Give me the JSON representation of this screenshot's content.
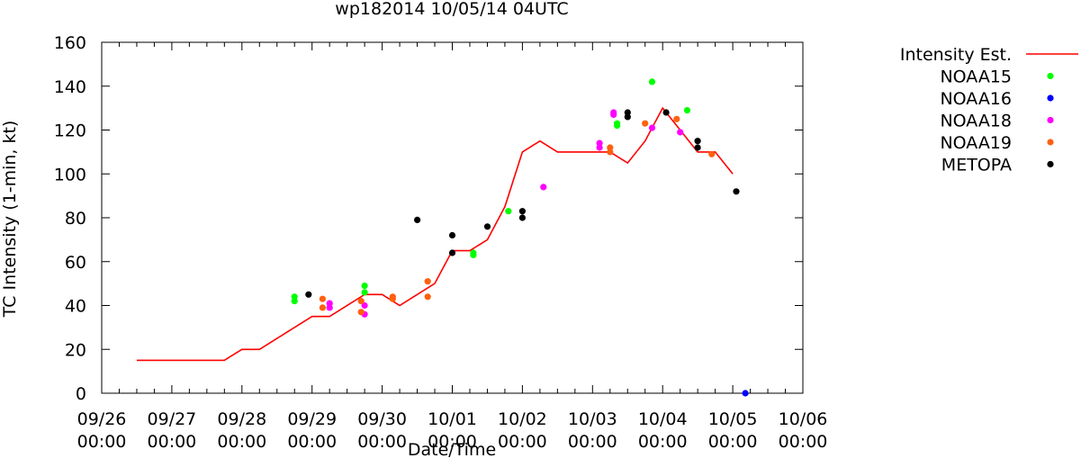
{
  "chart_data": {
    "type": "scatter",
    "title": "wp182014 10/05/14 04UTC",
    "xlabel": "Date/Time",
    "ylabel": "TC Intensity (1-min, kt)",
    "xlim": [
      0,
      10
    ],
    "ylim": [
      0,
      160
    ],
    "x_unit": "days since 09/26 00:00",
    "y_ticks": [
      0,
      20,
      40,
      60,
      80,
      100,
      120,
      140,
      160
    ],
    "x_ticks": [
      {
        "x": 0,
        "date": "09/26",
        "time": "00:00"
      },
      {
        "x": 1,
        "date": "09/27",
        "time": "00:00"
      },
      {
        "x": 2,
        "date": "09/28",
        "time": "00:00"
      },
      {
        "x": 3,
        "date": "09/29",
        "time": "00:00"
      },
      {
        "x": 4,
        "date": "09/30",
        "time": "00:00"
      },
      {
        "x": 5,
        "date": "10/01",
        "time": "00:00"
      },
      {
        "x": 6,
        "date": "10/02",
        "time": "00:00"
      },
      {
        "x": 7,
        "date": "10/03",
        "time": "00:00"
      },
      {
        "x": 8,
        "date": "10/04",
        "time": "00:00"
      },
      {
        "x": 9,
        "date": "10/05",
        "time": "00:00"
      },
      {
        "x": 10,
        "date": "10/06",
        "time": "00:00"
      }
    ],
    "line_series": {
      "name": "Intensity Est.",
      "color": "#ff0000",
      "points": [
        [
          0.5,
          15
        ],
        [
          1.75,
          15
        ],
        [
          2.0,
          20
        ],
        [
          2.25,
          20
        ],
        [
          3.0,
          35
        ],
        [
          3.25,
          35
        ],
        [
          3.75,
          45
        ],
        [
          4.0,
          45
        ],
        [
          4.25,
          40
        ],
        [
          4.75,
          50
        ],
        [
          5.0,
          65
        ],
        [
          5.25,
          65
        ],
        [
          5.5,
          70
        ],
        [
          5.75,
          85
        ],
        [
          6.0,
          110
        ],
        [
          6.25,
          115
        ],
        [
          6.5,
          110
        ],
        [
          7.0,
          110
        ],
        [
          7.25,
          110
        ],
        [
          7.5,
          105
        ],
        [
          7.75,
          115
        ],
        [
          8.0,
          130
        ],
        [
          8.25,
          120
        ],
        [
          8.5,
          110
        ],
        [
          8.75,
          110
        ],
        [
          9.0,
          100
        ]
      ]
    },
    "series": [
      {
        "name": "NOAA15",
        "color": "#00ff00",
        "points": [
          [
            2.75,
            44
          ],
          [
            2.75,
            42
          ],
          [
            3.75,
            49
          ],
          [
            3.75,
            46
          ],
          [
            5.3,
            64
          ],
          [
            5.3,
            63
          ],
          [
            5.8,
            83
          ],
          [
            7.35,
            123
          ],
          [
            7.35,
            122
          ],
          [
            7.85,
            142
          ],
          [
            8.35,
            129
          ]
        ]
      },
      {
        "name": "NOAA16",
        "color": "#0000ff",
        "points": [
          [
            9.18,
            0
          ]
        ]
      },
      {
        "name": "NOAA18",
        "color": "#ff00ff",
        "points": [
          [
            3.25,
            41
          ],
          [
            3.25,
            39
          ],
          [
            3.75,
            40
          ],
          [
            3.75,
            36
          ],
          [
            6.3,
            94
          ],
          [
            7.1,
            114
          ],
          [
            7.1,
            112
          ],
          [
            7.3,
            128
          ],
          [
            7.3,
            127
          ],
          [
            7.85,
            121
          ],
          [
            8.25,
            119
          ]
        ]
      },
      {
        "name": "NOAA19",
        "color": "#ff6010",
        "points": [
          [
            3.15,
            43
          ],
          [
            3.15,
            39
          ],
          [
            3.7,
            42
          ],
          [
            3.7,
            37
          ],
          [
            4.15,
            44
          ],
          [
            4.15,
            43
          ],
          [
            4.65,
            51
          ],
          [
            4.65,
            44
          ],
          [
            7.25,
            112
          ],
          [
            7.25,
            110
          ],
          [
            7.75,
            123
          ],
          [
            8.2,
            125
          ],
          [
            8.7,
            109
          ]
        ]
      },
      {
        "name": "METOPA",
        "color": "#000000",
        "points": [
          [
            2.95,
            45
          ],
          [
            4.5,
            79
          ],
          [
            5.0,
            72
          ],
          [
            5.0,
            64
          ],
          [
            5.5,
            76
          ],
          [
            6.0,
            83
          ],
          [
            6.0,
            80
          ],
          [
            7.5,
            128
          ],
          [
            7.5,
            126
          ],
          [
            8.05,
            128
          ],
          [
            8.5,
            115
          ],
          [
            8.5,
            112
          ],
          [
            9.05,
            92
          ]
        ]
      }
    ]
  }
}
